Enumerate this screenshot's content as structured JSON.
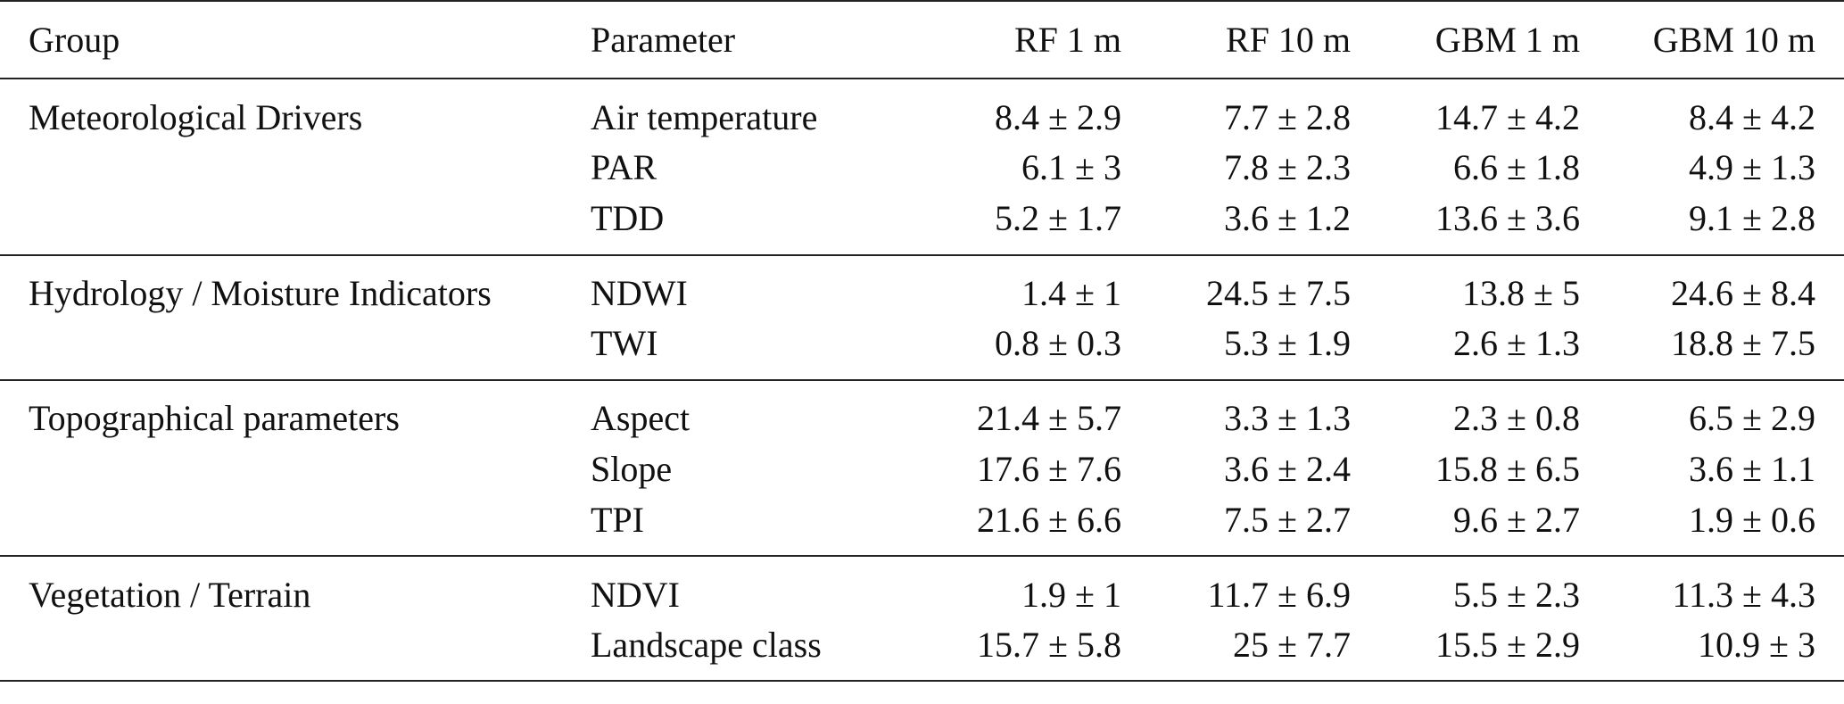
{
  "columns": {
    "group": "Group",
    "parameter": "Parameter",
    "rf_1m": "RF 1 m",
    "rf_10m": "RF 10 m",
    "gbm_1m": "GBM 1 m",
    "gbm_10m": "GBM 10 m"
  },
  "sections": [
    {
      "group": "Meteorological Drivers",
      "rows": [
        {
          "parameter": "Air temperature",
          "rf_1m": "8.4 ± 2.9",
          "rf_10m": "7.7 ± 2.8",
          "gbm_1m": "14.7 ± 4.2",
          "gbm_10m": "8.4 ± 4.2"
        },
        {
          "parameter": "PAR",
          "rf_1m": "6.1 ± 3",
          "rf_10m": "7.8 ± 2.3",
          "gbm_1m": "6.6 ± 1.8",
          "gbm_10m": "4.9 ± 1.3"
        },
        {
          "parameter": "TDD",
          "rf_1m": "5.2 ± 1.7",
          "rf_10m": "3.6 ± 1.2",
          "gbm_1m": "13.6 ± 3.6",
          "gbm_10m": "9.1 ± 2.8"
        }
      ]
    },
    {
      "group": "Hydrology / Moisture Indicators",
      "rows": [
        {
          "parameter": "NDWI",
          "rf_1m": "1.4 ± 1",
          "rf_10m": "24.5 ± 7.5",
          "gbm_1m": "13.8 ± 5",
          "gbm_10m": "24.6 ± 8.4"
        },
        {
          "parameter": "TWI",
          "rf_1m": "0.8 ± 0.3",
          "rf_10m": "5.3 ± 1.9",
          "gbm_1m": "2.6 ± 1.3",
          "gbm_10m": "18.8 ± 7.5"
        }
      ]
    },
    {
      "group": "Topographical parameters",
      "rows": [
        {
          "parameter": "Aspect",
          "rf_1m": "21.4 ± 5.7",
          "rf_10m": "3.3 ± 1.3",
          "gbm_1m": "2.3 ± 0.8",
          "gbm_10m": "6.5 ± 2.9"
        },
        {
          "parameter": "Slope",
          "rf_1m": "17.6 ± 7.6",
          "rf_10m": "3.6 ± 2.4",
          "gbm_1m": "15.8 ± 6.5",
          "gbm_10m": "3.6 ± 1.1"
        },
        {
          "parameter": "TPI",
          "rf_1m": "21.6 ± 6.6",
          "rf_10m": "7.5 ± 2.7",
          "gbm_1m": "9.6 ± 2.7",
          "gbm_10m": "1.9 ± 0.6"
        }
      ]
    },
    {
      "group": "Vegetation / Terrain",
      "rows": [
        {
          "parameter": "NDVI",
          "rf_1m": "1.9 ± 1",
          "rf_10m": "11.7 ± 6.9",
          "gbm_1m": "5.5 ± 2.3",
          "gbm_10m": "11.3 ± 4.3"
        },
        {
          "parameter": "Landscape class",
          "rf_1m": "15.7 ± 5.8",
          "rf_10m": "25 ± 7.7",
          "gbm_1m": "15.5 ± 2.9",
          "gbm_10m": "10.9 ± 3"
        }
      ]
    }
  ]
}
